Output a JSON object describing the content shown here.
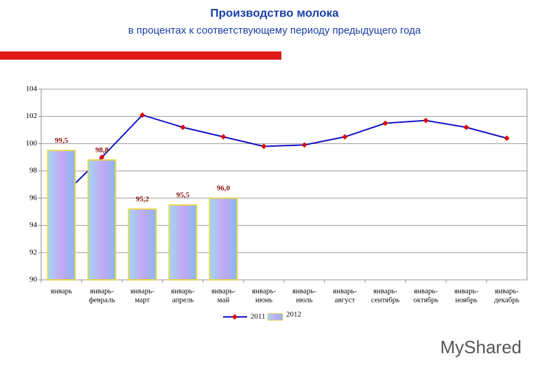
{
  "chart_data": {
    "type": "bar_line",
    "title": "Производство молока",
    "subtitle": "в процентах к соответствующему периоду предыдущего года",
    "categories": [
      [
        "январь"
      ],
      [
        "январь-",
        "февраль"
      ],
      [
        "январь-",
        "март"
      ],
      [
        "январь-",
        "апрель"
      ],
      [
        "январь-",
        "май"
      ],
      [
        "январь-",
        "июнь"
      ],
      [
        "январь-",
        "июль"
      ],
      [
        "январь-",
        "август"
      ],
      [
        "январь-",
        "сентябрь"
      ],
      [
        "январь-",
        "октябрь"
      ],
      [
        "январь-",
        "ноябрь"
      ],
      [
        "январь-",
        "декабрь"
      ]
    ],
    "series": [
      {
        "name": "2011",
        "kind": "line",
        "color": "#1010c8",
        "marker_color": "#e00000",
        "values": [
          96.1,
          99.0,
          102.1,
          101.2,
          100.5,
          99.8,
          99.9,
          100.5,
          101.5,
          101.7,
          101.2,
          100.4
        ]
      },
      {
        "name": "2012",
        "kind": "bar",
        "color": "#b8a8f0",
        "values": [
          99.5,
          98.8,
          95.2,
          95.5,
          96.0,
          null,
          null,
          null,
          null,
          null,
          null,
          null
        ],
        "value_labels": [
          "99,5",
          "98,8",
          "95,2",
          "95,5",
          "96,0",
          null,
          null,
          null,
          null,
          null,
          null,
          null
        ]
      }
    ],
    "ylim": [
      90,
      104
    ],
    "yticks": [
      90,
      92,
      94,
      96,
      98,
      100,
      102,
      104
    ],
    "grid": true,
    "watermark": "MyShared"
  }
}
